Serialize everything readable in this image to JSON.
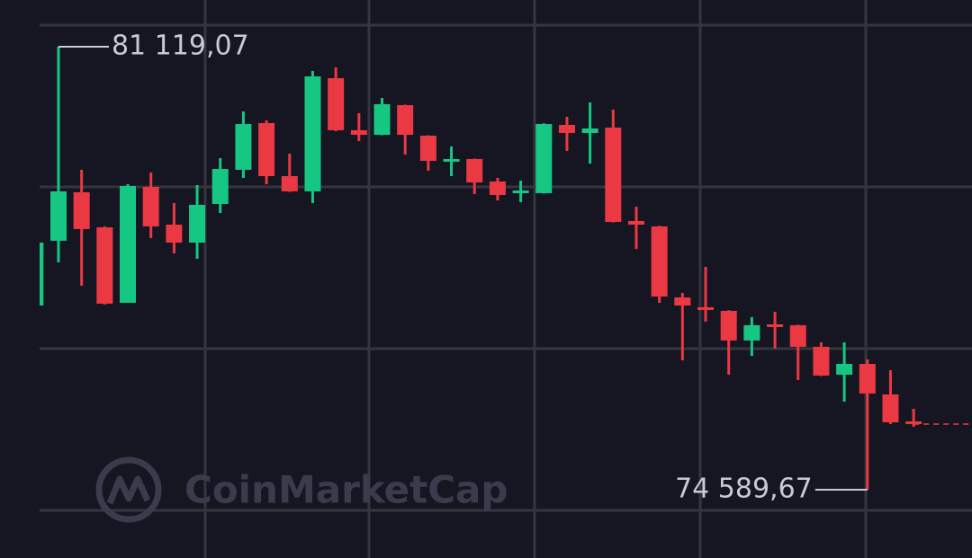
{
  "chart_data": {
    "type": "candlestick",
    "watermark": "CoinMarketCap",
    "high_label": "81 119,07",
    "low_label": "74 589,67",
    "up_color": "#16c784",
    "down_color": "#ea3943",
    "grid": true,
    "ylim": [
      73583,
      81808
    ],
    "open": [
      77305,
      78259,
      78974,
      78457,
      77345,
      79053,
      78497,
      78232,
      78802,
      79305,
      79994,
      79212,
      78987,
      80656,
      79888,
      79821,
      80258,
      79808,
      79437,
      79464,
      79133,
      78974,
      78961,
      79967,
      79848,
      79927,
      78550,
      78471,
      77424,
      77279,
      77226,
      76789,
      77027,
      77014,
      76696,
      76285,
      76444,
      75994,
      75597
    ],
    "high": [
      78232,
      81119.07,
      79305,
      78470,
      79093,
      79265,
      78815,
      79080,
      79477,
      80166,
      80033,
      79543,
      80762,
      80815,
      80139,
      80364,
      80265,
      79815,
      79649,
      79470,
      79186,
      79146,
      79990,
      80086,
      80298,
      80192,
      78762,
      78480,
      77490,
      77875,
      77235,
      77133,
      77212,
      77020,
      76762,
      76762,
      76510,
      76351,
      75782
    ],
    "low": [
      77305,
      77941,
      77596,
      77320,
      77345,
      78298,
      78073,
      77994,
      78669,
      79186,
      79093,
      78980,
      78815,
      79875,
      79729,
      79815,
      79530,
      79292,
      79212,
      78947,
      78855,
      78828,
      78955,
      79583,
      79398,
      78530,
      78139,
      77345,
      76497,
      77067,
      76285,
      76563,
      76669,
      76206,
      76265,
      75888,
      74589.67,
      75557,
      75517
    ],
    "close": [
      78232,
      78987,
      78431,
      77332,
      79066,
      78471,
      78232,
      78788,
      79318,
      79980,
      79212,
      78987,
      80682,
      79888,
      79821,
      80272,
      79821,
      79437,
      79464,
      79119,
      78934,
      79000,
      79980,
      79848,
      79914,
      78537,
      78497,
      77437,
      77305,
      77239,
      76789,
      77014,
      77000,
      76696,
      76272,
      76444,
      76007,
      75583,
      75557
    ]
  }
}
